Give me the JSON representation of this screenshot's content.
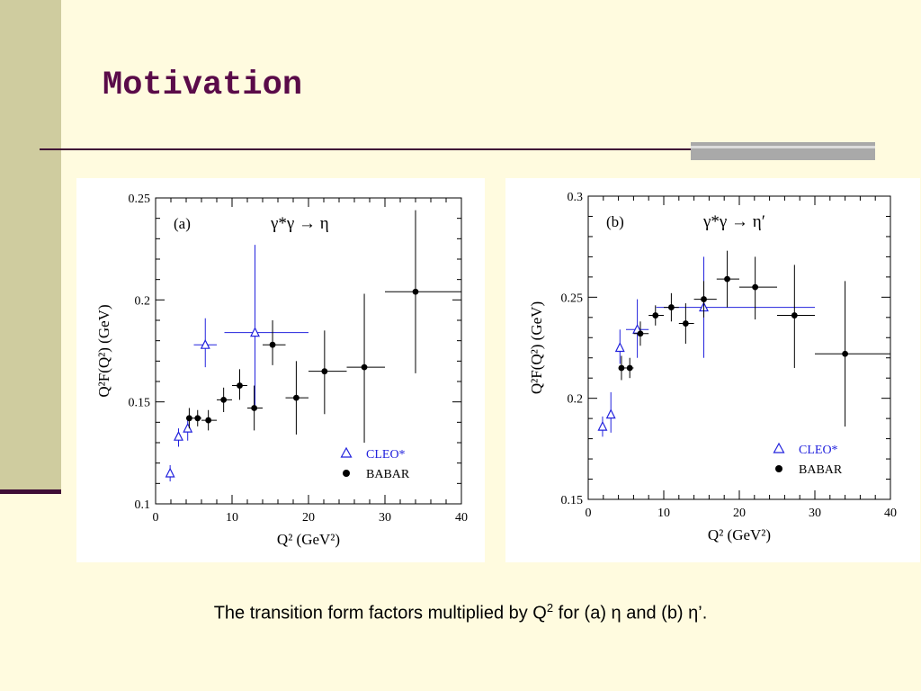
{
  "slide": {
    "title": "Motivation",
    "caption_before": "The transition form factors multiplied by Q",
    "caption_sup": "2",
    "caption_after": " for (a) η  and (b) η’."
  },
  "colors": {
    "background": "#fffbdf",
    "sidebar": "#cfcc9f",
    "title": "#5a0b49",
    "rule": "#3f0d36",
    "cleo": "#2222dd",
    "babar": "#000000"
  },
  "chart_data": [
    {
      "type": "scatter",
      "panel_label": "(a)",
      "reaction": "γ*γ → η",
      "xlabel": "Q² (GeV²)",
      "ylabel": "Q²F(Q²) (GeV)",
      "xlim": [
        0,
        40
      ],
      "ylim": [
        0.1,
        0.25
      ],
      "xticks": [
        0,
        10,
        20,
        30,
        40
      ],
      "yticks": [
        0.1,
        0.15,
        0.2,
        0.25
      ],
      "xticklabels": [
        "0",
        "10",
        "20",
        "30",
        "40"
      ],
      "yticklabels": [
        "0.1",
        "0.15",
        "0.2",
        "0.25"
      ],
      "legend_position": "bottom-right",
      "series": [
        {
          "name": "CLEO*",
          "marker": "open-triangle",
          "color": "#2222dd",
          "points": [
            {
              "x": 1.9,
              "y": 0.115,
              "xerr": [
                1.9,
                1.9
              ],
              "yerr": [
                0.111,
                0.119
              ]
            },
            {
              "x": 3.0,
              "y": 0.133,
              "xerr": [
                3.0,
                3.0
              ],
              "yerr": [
                0.128,
                0.137
              ]
            },
            {
              "x": 4.2,
              "y": 0.137,
              "xerr": [
                4.2,
                4.2
              ],
              "yerr": [
                0.131,
                0.143
              ]
            },
            {
              "x": 6.5,
              "y": 0.178,
              "xerr": [
                5.0,
                8.0
              ],
              "yerr": [
                0.167,
                0.191
              ]
            },
            {
              "x": 13.0,
              "y": 0.184,
              "xerr": [
                9.0,
                20.0
              ],
              "yerr": [
                0.147,
                0.227
              ]
            }
          ]
        },
        {
          "name": "BABAR",
          "marker": "filled-circle",
          "color": "#000000",
          "points": [
            {
              "x": 4.4,
              "y": 0.142,
              "xerr": [
                4.0,
                5.0
              ],
              "yerr": [
                0.137,
                0.147
              ]
            },
            {
              "x": 5.5,
              "y": 0.142,
              "xerr": [
                5.0,
                6.0
              ],
              "yerr": [
                0.138,
                0.146
              ]
            },
            {
              "x": 6.9,
              "y": 0.141,
              "xerr": [
                6.0,
                8.0
              ],
              "yerr": [
                0.136,
                0.146
              ]
            },
            {
              "x": 8.9,
              "y": 0.151,
              "xerr": [
                8.0,
                10.0
              ],
              "yerr": [
                0.145,
                0.157
              ]
            },
            {
              "x": 11.0,
              "y": 0.158,
              "xerr": [
                10.0,
                12.0
              ],
              "yerr": [
                0.151,
                0.166
              ]
            },
            {
              "x": 12.9,
              "y": 0.147,
              "xerr": [
                12.0,
                14.0
              ],
              "yerr": [
                0.136,
                0.158
              ]
            },
            {
              "x": 15.3,
              "y": 0.178,
              "xerr": [
                14.0,
                17.0
              ],
              "yerr": [
                0.168,
                0.19
              ]
            },
            {
              "x": 18.4,
              "y": 0.152,
              "xerr": [
                17.0,
                20.0
              ],
              "yerr": [
                0.134,
                0.17
              ]
            },
            {
              "x": 22.1,
              "y": 0.165,
              "xerr": [
                20.0,
                25.0
              ],
              "yerr": [
                0.144,
                0.185
              ]
            },
            {
              "x": 27.3,
              "y": 0.167,
              "xerr": [
                25.0,
                30.0
              ],
              "yerr": [
                0.13,
                0.203
              ]
            },
            {
              "x": 34.0,
              "y": 0.204,
              "xerr": [
                30.0,
                40.0
              ],
              "yerr": [
                0.164,
                0.244
              ]
            }
          ]
        }
      ]
    },
    {
      "type": "scatter",
      "panel_label": "(b)",
      "reaction": "γ*γ → η′",
      "xlabel": "Q² (GeV²)",
      "ylabel": "Q²F(Q²) (GeV)",
      "xlim": [
        0,
        40
      ],
      "ylim": [
        0.15,
        0.3
      ],
      "xticks": [
        0,
        10,
        20,
        30,
        40
      ],
      "yticks": [
        0.15,
        0.2,
        0.25,
        0.3
      ],
      "xticklabels": [
        "0",
        "10",
        "20",
        "30",
        "40"
      ],
      "yticklabels": [
        "0.15",
        "0.2",
        "0.25",
        "0.3"
      ],
      "legend_position": "bottom-right",
      "series": [
        {
          "name": "CLEO*",
          "marker": "open-triangle",
          "color": "#2222dd",
          "points": [
            {
              "x": 1.9,
              "y": 0.186,
              "xerr": [
                1.9,
                1.9
              ],
              "yerr": [
                0.181,
                0.191
              ]
            },
            {
              "x": 3.0,
              "y": 0.192,
              "xerr": [
                3.0,
                3.0
              ],
              "yerr": [
                0.183,
                0.203
              ]
            },
            {
              "x": 4.2,
              "y": 0.225,
              "xerr": [
                4.2,
                4.2
              ],
              "yerr": [
                0.217,
                0.234
              ]
            },
            {
              "x": 6.5,
              "y": 0.234,
              "xerr": [
                5.0,
                8.0
              ],
              "yerr": [
                0.22,
                0.249
              ]
            },
            {
              "x": 15.3,
              "y": 0.245,
              "xerr": [
                9.0,
                30.0
              ],
              "yerr": [
                0.22,
                0.27
              ]
            }
          ]
        },
        {
          "name": "BABAR",
          "marker": "filled-circle",
          "color": "#000000",
          "points": [
            {
              "x": 4.4,
              "y": 0.215,
              "xerr": [
                4.0,
                5.0
              ],
              "yerr": [
                0.209,
                0.221
              ]
            },
            {
              "x": 5.5,
              "y": 0.215,
              "xerr": [
                5.0,
                6.0
              ],
              "yerr": [
                0.21,
                0.22
              ]
            },
            {
              "x": 6.9,
              "y": 0.232,
              "xerr": [
                6.0,
                8.0
              ],
              "yerr": [
                0.226,
                0.238
              ]
            },
            {
              "x": 8.9,
              "y": 0.241,
              "xerr": [
                8.0,
                10.0
              ],
              "yerr": [
                0.236,
                0.246
              ]
            },
            {
              "x": 11.0,
              "y": 0.245,
              "xerr": [
                10.0,
                12.0
              ],
              "yerr": [
                0.238,
                0.252
              ]
            },
            {
              "x": 12.9,
              "y": 0.237,
              "xerr": [
                12.0,
                14.0
              ],
              "yerr": [
                0.227,
                0.247
              ]
            },
            {
              "x": 15.3,
              "y": 0.249,
              "xerr": [
                14.0,
                17.0
              ],
              "yerr": [
                0.24,
                0.258
              ]
            },
            {
              "x": 18.4,
              "y": 0.259,
              "xerr": [
                17.0,
                20.0
              ],
              "yerr": [
                0.245,
                0.273
              ]
            },
            {
              "x": 22.1,
              "y": 0.255,
              "xerr": [
                20.0,
                25.0
              ],
              "yerr": [
                0.239,
                0.27
              ]
            },
            {
              "x": 27.3,
              "y": 0.241,
              "xerr": [
                25.0,
                30.0
              ],
              "yerr": [
                0.215,
                0.266
              ]
            },
            {
              "x": 34.0,
              "y": 0.222,
              "xerr": [
                30.0,
                40.0
              ],
              "yerr": [
                0.186,
                0.258
              ]
            }
          ]
        }
      ]
    }
  ]
}
